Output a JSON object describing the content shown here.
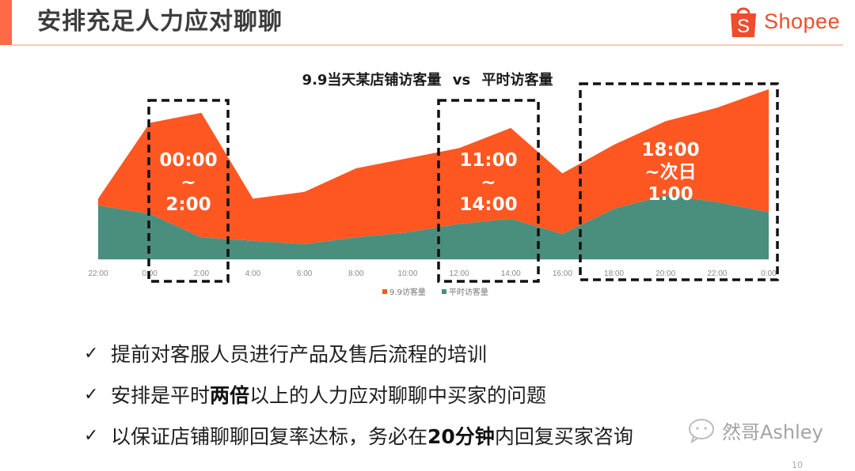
{
  "header": {
    "title": "安排充足人力应对聊聊",
    "logo_text": "Shopee",
    "accent_color": "#fd6a47",
    "brand_color": "#ee4d2d"
  },
  "chart_data": {
    "type": "area",
    "stacked": true,
    "title": "9.9当天某店铺访客量 vs 平时访客量",
    "title_part1": "9.9当天某店铺访客量",
    "title_vs": "vs",
    "title_part2": "平时访客量",
    "xlabel": "",
    "ylabel": "",
    "categories": [
      "22:00",
      "0:00",
      "2:00",
      "4:00",
      "6:00",
      "8:00",
      "10:00",
      "12:00",
      "14:00",
      "16:00",
      "18:00",
      "20:00",
      "22:00",
      "0:00"
    ],
    "series": [
      {
        "name": "平时访客量",
        "color": "#4a8f7e",
        "values": [
          32,
          27,
          13,
          11,
          9,
          13,
          16,
          21,
          24,
          15,
          30,
          38,
          34,
          28
        ]
      },
      {
        "name": "9.9访客量",
        "color": "#fe5722",
        "values": [
          4,
          54,
          74,
          25,
          31,
          41,
          44,
          45,
          54,
          36,
          38,
          44,
          56,
          73
        ]
      }
    ],
    "ylim": [
      0,
      100
    ],
    "grid": false,
    "legend_position": "bottom",
    "annotations": [
      {
        "label_lines": [
          "00:00",
          "~",
          "2:00"
        ],
        "range": [
          "0:00",
          "2:00"
        ]
      },
      {
        "label_lines": [
          "11:00",
          "~",
          "14:00"
        ],
        "range": [
          "12:00",
          "14:00"
        ]
      },
      {
        "label_lines": [
          "18:00",
          "~次日",
          "1:00"
        ],
        "range": [
          "18:00",
          "0:00"
        ]
      }
    ]
  },
  "legend": {
    "items": [
      {
        "label": "9.9访客量",
        "color": "#fe5722"
      },
      {
        "label": "平时访客量",
        "color": "#4a8f7e"
      }
    ]
  },
  "bullets": [
    {
      "check": "✓",
      "parts": [
        {
          "text": "提前对客服人员进行产品及售后流程的培训",
          "bold": false
        }
      ]
    },
    {
      "check": "✓",
      "parts": [
        {
          "text": "安排是平时",
          "bold": false
        },
        {
          "text": "两倍",
          "bold": true
        },
        {
          "text": "以上的人力应对聊聊中买家的问题",
          "bold": false
        }
      ]
    },
    {
      "check": "✓",
      "parts": [
        {
          "text": "以保证店铺聊聊回复率达标，务必在",
          "bold": false
        },
        {
          "text": "20分钟",
          "bold": true
        },
        {
          "text": "内回复买家咨询",
          "bold": false
        }
      ]
    }
  ],
  "watermark": {
    "text": "然哥Ashley"
  },
  "page_number": "10"
}
